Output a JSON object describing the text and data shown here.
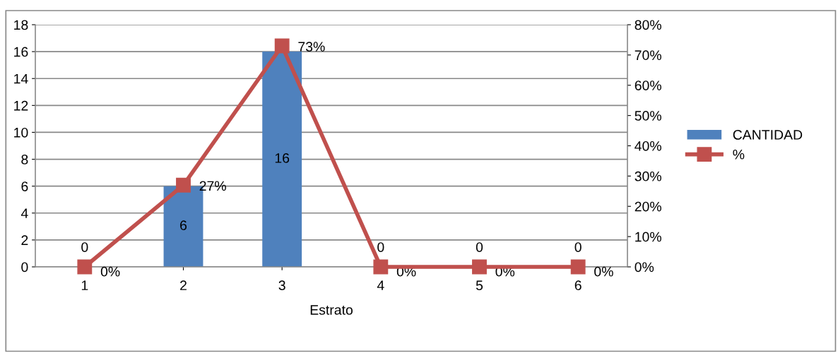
{
  "chart_data": {
    "type": "bar",
    "xlabel": "Estrato",
    "categories": [
      "1",
      "2",
      "3",
      "4",
      "5",
      "6"
    ],
    "series": [
      {
        "name": "CANTIDAD",
        "color": "#4f81bd",
        "values": [
          0,
          6,
          16,
          0,
          0,
          0
        ],
        "data_labels": true
      },
      {
        "name": "%",
        "type": "line",
        "axis": "y2",
        "color": "#c0504d",
        "values": [
          0,
          27,
          73,
          0,
          0,
          0
        ],
        "marker": "square",
        "value_labels": [
          "0%",
          "27%",
          "73%",
          "0%",
          "0%",
          "0%"
        ]
      }
    ],
    "ylim": [
      0,
      18
    ],
    "yticks": [
      0,
      2,
      4,
      6,
      8,
      10,
      12,
      14,
      16,
      18
    ],
    "y2lim": [
      0,
      80
    ],
    "y2ticks": [
      {
        "value": 0,
        "label": "0%"
      },
      {
        "value": 10,
        "label": "10%"
      },
      {
        "value": 20,
        "label": "20%"
      },
      {
        "value": 30,
        "label": "30%"
      },
      {
        "value": 40,
        "label": "40%"
      },
      {
        "value": 50,
        "label": "50%"
      },
      {
        "value": 60,
        "label": "60%"
      },
      {
        "value": 70,
        "label": "70%"
      },
      {
        "value": 80,
        "label": "80%"
      }
    ],
    "grid": "y",
    "legend": "right"
  }
}
